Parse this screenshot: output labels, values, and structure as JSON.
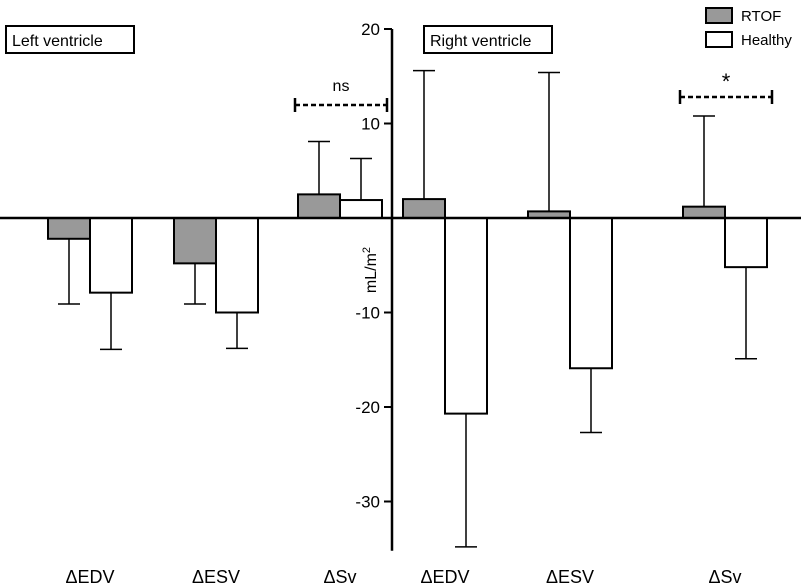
{
  "chart_data": {
    "type": "bar",
    "ylabel_base": "mL/m",
    "ylabel_sup": "2",
    "ylim": [
      -35,
      20
    ],
    "yticks": [
      20,
      10,
      -10,
      -20,
      -30
    ],
    "grid": false,
    "legend_position": "top-right",
    "panels": [
      {
        "label": "Left ventricle",
        "categories": [
          "ΔEDV",
          "ΔESV",
          "ΔSv"
        ]
      },
      {
        "label": "Right ventricle",
        "categories": [
          "ΔEDV",
          "ΔESV",
          "ΔSv"
        ]
      }
    ],
    "categories": [
      "ΔEDV",
      "ΔESV",
      "ΔSv",
      "ΔEDV",
      "ΔESV",
      "ΔSv"
    ],
    "series": [
      {
        "name": "RTOF",
        "color": "#999999",
        "values": [
          -2.2,
          -4.8,
          2.5,
          2.0,
          0.7,
          1.2
        ],
        "error_end": [
          -9.1,
          -9.1,
          8.1,
          15.6,
          15.4,
          10.8
        ]
      },
      {
        "name": "Healthy",
        "color": "#ffffff",
        "values": [
          -7.9,
          -10.0,
          1.9,
          -20.7,
          -15.9,
          -5.2
        ],
        "error_end": [
          -13.9,
          -13.8,
          6.3,
          -34.8,
          -22.7,
          -14.9
        ]
      }
    ],
    "annotations": [
      {
        "text": "ns",
        "category_index": 2
      },
      {
        "text": "*",
        "category_index": 5
      }
    ]
  }
}
